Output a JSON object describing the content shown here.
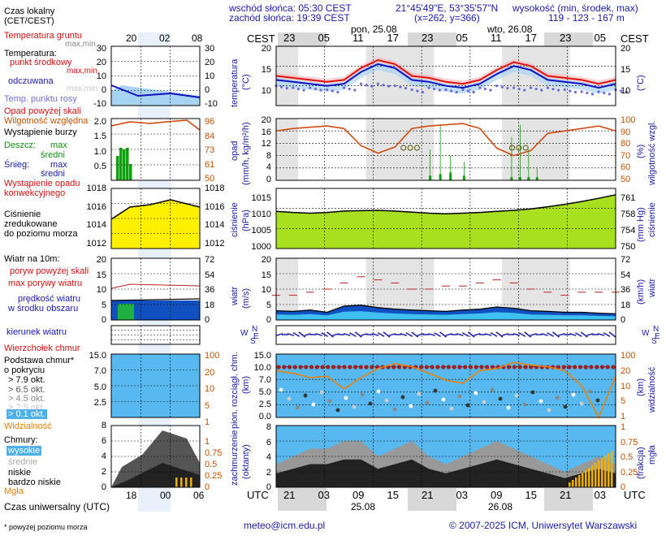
{
  "header": {
    "legend_title_1": "Czas lokalny",
    "legend_title_2": "(CET/CEST)",
    "sunrise": "wschód słońca: 05:30 CEST",
    "sunset": "zachód słońca: 19:39 CEST",
    "coords": "21°45'49\"E, 53°35'57\"N",
    "grid": "(x=262, y=366)",
    "height_label": "wysokość (min, środek, max)",
    "height_values": "119 - 123 - 167 m"
  },
  "time_axis": {
    "tz_label": "CEST",
    "utc_label": "UTC",
    "top_local_hours": [
      "23",
      "05",
      "11",
      "17",
      "23",
      "05",
      "11",
      "17",
      "23",
      "05"
    ],
    "bottom_utc_hours": [
      "21",
      "03",
      "09",
      "15",
      "21",
      "03",
      "09",
      "15",
      "21",
      "03"
    ],
    "day1": "pon, 25.08",
    "day2": "wto, 26.08",
    "date1": "25.08",
    "date2": "26.08",
    "legend_local_hours": [
      "20",
      "02",
      "08"
    ],
    "legend_utc_hours": [
      "18",
      "00",
      "06"
    ]
  },
  "legend": {
    "soil_temp": "Temperatura gruntu",
    "soil_temp_sub": "max,min",
    "temperature": "Temperatura:",
    "temp_mid": "punkt środkowy",
    "temp_max_min": "max,min",
    "perceived": "odczuwana",
    "perceived_max_min": "max,min",
    "dewpoint": "Temp. punktu rosy",
    "precip_over": "Opad powyżej skali",
    "humidity": "Wilgotność względna",
    "storm": "Wystąpienie burzy",
    "rain": "Deszcz:",
    "rain_max": "max",
    "rain_avg": "średni",
    "snow": "Śnieg:",
    "snow_max": "max",
    "snow_avg": "średni",
    "conv1": "Wystąpienie opadu",
    "conv2": "konwekcyjnego",
    "pressure1": "Ciśnienie",
    "pressure2": "zredukowane",
    "pressure3": "do poziomu morza",
    "wind": "Wiatr na 10m:",
    "gust_over": "poryw powyżej skali",
    "gust_max": "max porywy wiatru",
    "wind_speed1": "prędkość wiatru",
    "wind_speed2": "w środku obszaru",
    "wind_dir": "kierunek wiatru",
    "cloud_top": "Wierzchołek chmur",
    "cloud_base1": "Podstawa chmur*",
    "cloud_base2": "o pokryciu",
    "okt79": "> 7.9 okt.",
    "okt65": "> 6.5 okt.",
    "okt45": "> 4.5 okt.",
    "okt25": "> 2.5 okt.",
    "okt01": "> 0.1 okt.",
    "visibility": "Widzialność",
    "clouds": "Chmury:",
    "high": "wysokie",
    "mid": "średnie",
    "low": "niskie",
    "very_low": "bardzo niskie",
    "fog": "Mgła",
    "utc_title": "Czas uniwersalny (UTC)",
    "footnote": "* powyżej poziomu morza"
  },
  "panels": {
    "temp": {
      "label1": "temperatura",
      "label2": "(°C)",
      "ylim": [
        5,
        20
      ],
      "ticks": [
        "20",
        "15",
        "10"
      ],
      "right_label": "(°C)"
    },
    "precip": {
      "label1": "opad",
      "label2": "(mm/h, kg/m²/h)",
      "ylim": [
        0,
        20
      ],
      "ticks": [
        "20",
        "16",
        "12",
        "8",
        "4",
        "0"
      ],
      "right_ticks": [
        "100",
        "90",
        "80",
        "70",
        "60",
        "50"
      ],
      "right_label1": "(%)",
      "right_label2": "wilgotność wzgl."
    },
    "pressure": {
      "label1": "ciśnienie",
      "label2": "(hPa)",
      "ylim": [
        1000,
        1017
      ],
      "ticks": [
        "1015",
        "1010",
        "1005",
        "1000"
      ],
      "right_ticks": [
        "761",
        "758",
        "754",
        "750"
      ],
      "right_label1": "(mm Hg)",
      "right_label2": "ciśnienie"
    },
    "wind": {
      "label1": "wiatr",
      "label2": "(m/s)",
      "ylim": [
        0,
        20
      ],
      "ticks": [
        "20",
        "15",
        "10",
        "5",
        "0"
      ],
      "right_ticks": [
        "72",
        "54",
        "36",
        "18",
        "0"
      ],
      "right_label1": "(km/h)",
      "right_label2": "wiatr"
    },
    "clouds": {
      "label1": "pion. rozciągł. chm.",
      "label2": "(km)",
      "ylim": [
        0,
        15
      ],
      "ticks": [
        "15.0",
        "10.0",
        "7.0",
        "5.0",
        "2.5",
        "0.0"
      ],
      "right_ticks": [
        "100",
        "20",
        "10",
        "5",
        "1"
      ],
      "right_label1": "(km)",
      "right_label2": "widzialność"
    },
    "cover": {
      "label1": "zachmurzenie",
      "label2": "(oktanty)",
      "ylim": [
        0,
        8
      ],
      "ticks": [
        "8",
        "6",
        "4",
        "2",
        "0"
      ],
      "right_ticks": [
        "1",
        "0.75",
        "0.5",
        "0.25",
        "0"
      ],
      "right_label1": "(frakcja)",
      "right_label2": "mgła"
    }
  },
  "legend_panels": {
    "temp_ticks": [
      "30",
      "20",
      "10",
      "0",
      "-10"
    ],
    "precip_ticks": [
      "2.0",
      "1.5",
      "1.0",
      "0.5"
    ],
    "hum_ticks": [
      "96",
      "84",
      "73",
      "61",
      "50"
    ],
    "pres_ticks": [
      "1018",
      "1016",
      "1014",
      "1012"
    ],
    "wind_ticks": [
      "20",
      "15",
      "10",
      "5",
      "0"
    ],
    "wind_r_ticks": [
      "72",
      "54",
      "36",
      "18",
      "0"
    ],
    "cloud_ticks": [
      "15.0",
      "7.0",
      "5.0",
      "2.5"
    ],
    "cloud_r_ticks": [
      "100",
      "20",
      "10",
      "5",
      "1"
    ],
    "cover_ticks": [
      "8",
      "6",
      "4",
      "2",
      "0"
    ],
    "cover_r_ticks": [
      "1",
      "0.75",
      "0.5",
      "0.25",
      "0"
    ]
  },
  "chart_data": {
    "type": "line",
    "x_hours_from_start": [
      0,
      3,
      6,
      9,
      12,
      15,
      18,
      21,
      24,
      27,
      30,
      33,
      36,
      39,
      42,
      45,
      48,
      51,
      54,
      57,
      60
    ],
    "series": [
      {
        "name": "temperatura (punkt środkowy)",
        "unit": "°C",
        "values": [
          12.5,
          12.0,
          11.5,
          11.0,
          11.5,
          14.5,
          16.5,
          15.5,
          12.5,
          12.0,
          11.0,
          10.5,
          11.5,
          14.0,
          16.0,
          15.0,
          12.5,
          12.0,
          11.5,
          10.5,
          11.5
        ]
      },
      {
        "name": "temperatura odczuwana",
        "unit": "°C",
        "values": [
          11.5,
          11.0,
          10.5,
          10.0,
          10.5,
          13.5,
          15.5,
          14.5,
          11.5,
          11.0,
          10.0,
          9.5,
          10.5,
          13.0,
          15.0,
          14.0,
          11.5,
          11.0,
          10.5,
          9.5,
          10.5
        ]
      },
      {
        "name": "temperatura punktu rosy",
        "unit": "°C",
        "values": [
          10.0,
          9.5,
          9.5,
          9.0,
          9.5,
          10.5,
          10.5,
          10.0,
          9.0,
          9.5,
          9.0,
          9.0,
          9.5,
          10.0,
          9.5,
          9.5,
          9.5,
          9.0,
          8.5,
          8.5,
          9.0
        ]
      },
      {
        "name": "wilgotność względna",
        "unit": "%",
        "values": [
          90,
          92,
          93,
          94,
          92,
          78,
          72,
          77,
          92,
          94,
          95,
          96,
          92,
          76,
          70,
          74,
          88,
          90,
          92,
          94,
          90
        ]
      },
      {
        "name": "ciśnienie",
        "unit": "hPa",
        "values": [
          1010.5,
          1010.2,
          1010.0,
          1010.2,
          1010.6,
          1010.7,
          1010.8,
          1010.6,
          1010.3,
          1010.0,
          1009.8,
          1010.0,
          1010.2,
          1010.5,
          1010.8,
          1011.2,
          1011.8,
          1012.5,
          1013.3,
          1014.2,
          1015.2
        ]
      },
      {
        "name": "prędkość wiatru",
        "unit": "m/s",
        "values": [
          3.0,
          2.8,
          3.2,
          2.5,
          4.5,
          4.8,
          4.0,
          3.5,
          3.2,
          3.0,
          2.8,
          3.2,
          3.5,
          4.2,
          3.8,
          3.0,
          2.8,
          2.5,
          2.5,
          2.2,
          2.0
        ]
      },
      {
        "name": "porywy wiatru",
        "unit": "m/s",
        "values": [
          8,
          8,
          9,
          10,
          12,
          14,
          13,
          12,
          10,
          10,
          11,
          11,
          12,
          13,
          12,
          10,
          9,
          8,
          9,
          9,
          9
        ]
      },
      {
        "name": "widzialność",
        "unit": "km",
        "values": [
          30,
          25,
          18,
          20,
          8,
          18,
          35,
          50,
          40,
          25,
          15,
          12,
          30,
          35,
          55,
          45,
          40,
          30,
          10,
          1,
          20
        ]
      },
      {
        "name": "zachmurzenie",
        "unit": "oktanty",
        "values": [
          3,
          4,
          5,
          5,
          6,
          6,
          4,
          5,
          6,
          4,
          3,
          4,
          5,
          6,
          5,
          4,
          3,
          2,
          3,
          4,
          3
        ]
      }
    ],
    "ylim_temp": [
      5,
      20
    ],
    "ylim_precip": [
      0,
      20
    ],
    "ylim_pressure": [
      1000,
      1017
    ],
    "ylim_wind": [
      0,
      20
    ],
    "grid": true
  }
}
